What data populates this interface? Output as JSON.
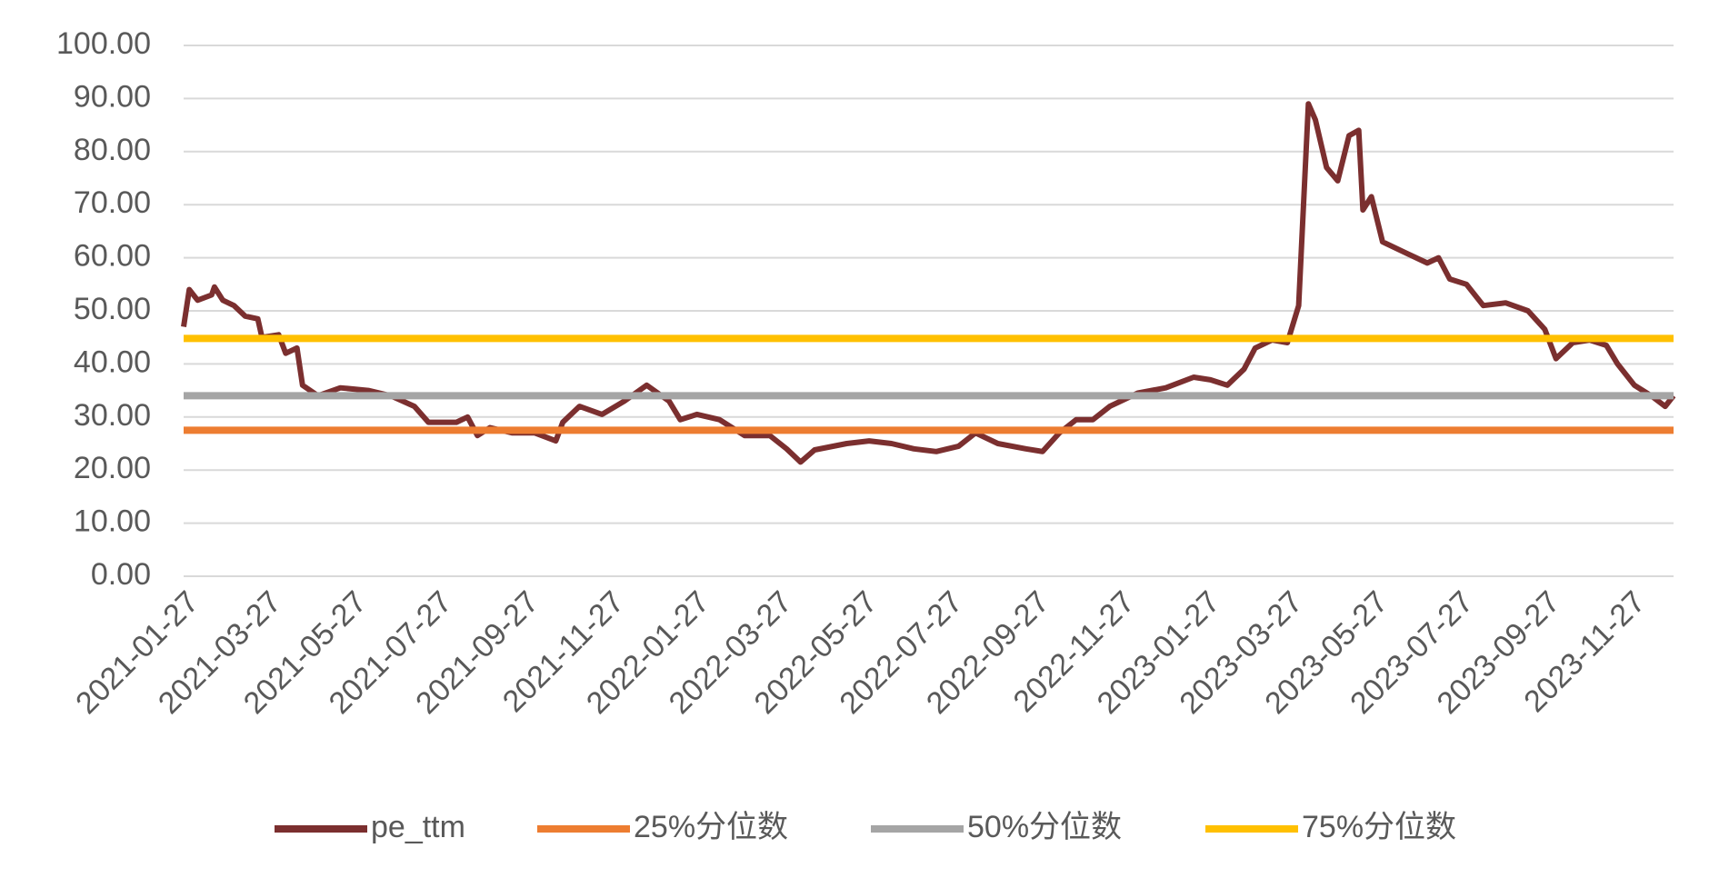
{
  "chart_data": {
    "type": "line",
    "ylim": [
      0,
      100
    ],
    "yticks": [
      {
        "value": 0,
        "label": "0.00"
      },
      {
        "value": 10,
        "label": "10.00"
      },
      {
        "value": 20,
        "label": "20.00"
      },
      {
        "value": 30,
        "label": "30.00"
      },
      {
        "value": 40,
        "label": "40.00"
      },
      {
        "value": 50,
        "label": "50.00"
      },
      {
        "value": 60,
        "label": "60.00"
      },
      {
        "value": 70,
        "label": "70.00"
      },
      {
        "value": 80,
        "label": "80.00"
      },
      {
        "value": 90,
        "label": "90.00"
      },
      {
        "value": 100,
        "label": "100.00"
      }
    ],
    "xlim": [
      "2021-01-27",
      "2023-12-28"
    ],
    "xticks": [
      "2021-01-27",
      "2021-03-27",
      "2021-05-27",
      "2021-07-27",
      "2021-09-27",
      "2021-11-27",
      "2022-01-27",
      "2022-03-27",
      "2022-05-27",
      "2022-07-27",
      "2022-09-27",
      "2022-11-27",
      "2023-01-27",
      "2023-03-27",
      "2023-05-27",
      "2023-07-27",
      "2023-09-27",
      "2023-11-27"
    ],
    "grid": true,
    "legend": "bottom",
    "series": [
      {
        "name": "pe_ttm",
        "color": "#7b2f2f",
        "x": [
          "2021-01-27",
          "2021-01-31",
          "2021-02-06",
          "2021-02-16",
          "2021-02-18",
          "2021-02-24",
          "2021-03-04",
          "2021-03-12",
          "2021-03-21",
          "2021-03-24",
          "2021-04-05",
          "2021-04-10",
          "2021-04-18",
          "2021-04-22",
          "2021-05-03",
          "2021-05-19",
          "2021-06-08",
          "2021-06-24",
          "2021-07-11",
          "2021-07-21",
          "2021-08-10",
          "2021-08-18",
          "2021-08-25",
          "2021-09-03",
          "2021-09-19",
          "2021-10-05",
          "2021-10-20",
          "2021-10-25",
          "2021-11-06",
          "2021-11-22",
          "2021-12-08",
          "2021-12-24",
          "2022-01-09",
          "2022-01-17",
          "2022-01-29",
          "2022-02-14",
          "2022-02-26",
          "2022-03-04",
          "2022-03-22",
          "2022-04-03",
          "2022-04-13",
          "2022-04-23",
          "2022-05-16",
          "2022-06-01",
          "2022-06-17",
          "2022-07-03",
          "2022-07-19",
          "2022-08-04",
          "2022-08-16",
          "2022-09-01",
          "2022-09-21",
          "2022-10-03",
          "2022-10-15",
          "2022-10-27",
          "2022-11-08",
          "2022-11-20",
          "2022-12-10",
          "2022-12-30",
          "2023-01-19",
          "2023-01-31",
          "2023-02-12",
          "2023-02-24",
          "2023-03-04",
          "2023-03-16",
          "2023-03-27",
          "2023-04-04",
          "2023-04-11",
          "2023-04-16",
          "2023-04-24",
          "2023-05-02",
          "2023-05-10",
          "2023-05-17",
          "2023-05-20",
          "2023-05-26",
          "2023-06-03",
          "2023-06-19",
          "2023-07-05",
          "2023-07-13",
          "2023-07-21",
          "2023-08-02",
          "2023-08-14",
          "2023-08-30",
          "2023-09-15",
          "2023-09-27",
          "2023-10-05",
          "2023-10-17",
          "2023-10-29",
          "2023-11-10",
          "2023-11-18",
          "2023-11-30",
          "2023-12-12",
          "2023-12-22",
          "2023-12-28"
        ],
        "values": [
          47,
          54,
          52,
          53,
          54.5,
          52,
          51,
          49,
          48.5,
          45,
          45.5,
          42,
          43,
          36,
          34,
          35.5,
          35,
          34,
          32,
          29,
          29,
          30,
          26.5,
          28,
          27,
          27,
          25.5,
          29,
          32,
          30.5,
          33,
          36,
          33,
          29.5,
          30.5,
          29.5,
          27.5,
          26.5,
          26.5,
          24,
          21.5,
          23.8,
          25,
          25.5,
          25,
          24,
          23.5,
          24.5,
          27,
          25,
          24,
          23.5,
          27,
          29.5,
          29.5,
          32,
          34.5,
          35.5,
          37.5,
          37,
          36,
          39,
          43,
          44.5,
          44,
          51,
          89,
          86,
          77,
          74.5,
          83,
          84,
          69,
          71.5,
          63,
          61,
          59,
          60,
          56,
          55,
          51,
          51.5,
          50,
          46.5,
          41,
          44,
          44.5,
          43.5,
          40,
          36,
          34,
          32,
          34
        ]
      },
      {
        "name": "25%分位数",
        "color": "#ed7d31",
        "x": [
          "2021-01-27",
          "2023-12-28"
        ],
        "values": [
          27.5,
          27.5
        ]
      },
      {
        "name": "50%分位数",
        "color": "#a5a5a5",
        "x": [
          "2021-01-27",
          "2023-12-28"
        ],
        "values": [
          34,
          34
        ]
      },
      {
        "name": "75%分位数",
        "color": "#ffc000",
        "x": [
          "2021-01-27",
          "2023-12-28"
        ],
        "values": [
          44.8,
          44.8
        ]
      }
    ]
  }
}
